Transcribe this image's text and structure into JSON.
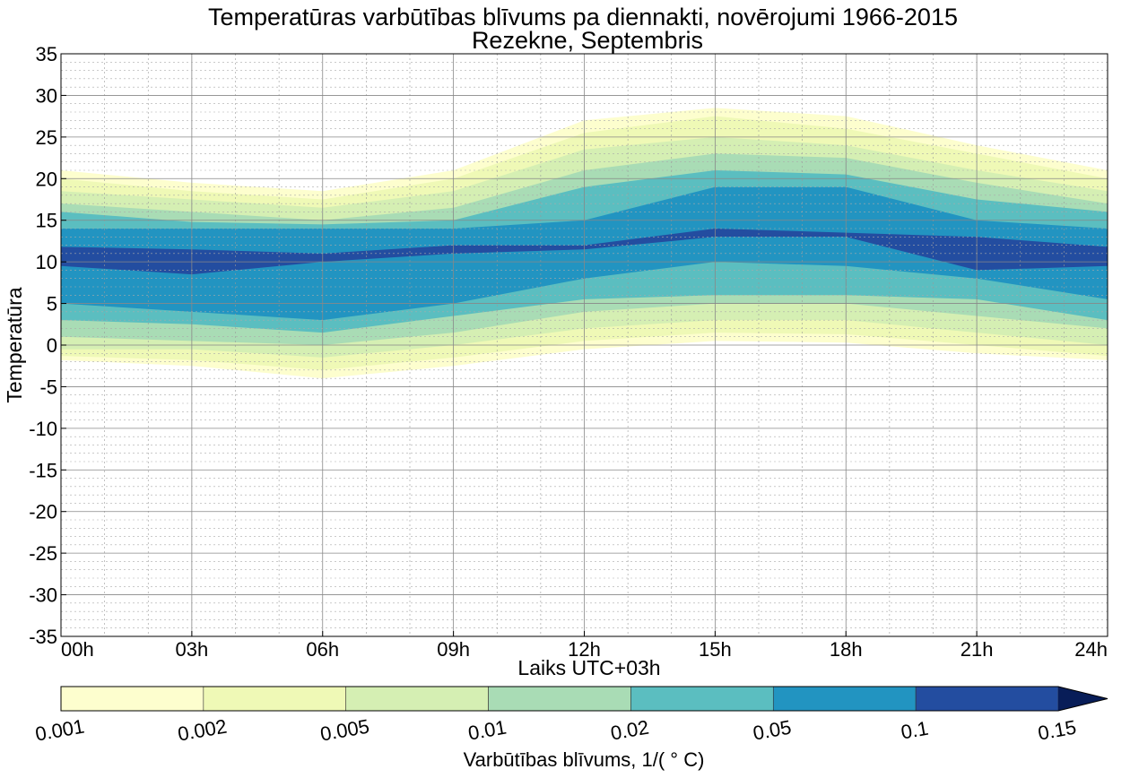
{
  "chart_data": {
    "type": "contourf",
    "title": "Temperatūras varbūtības blīvums pa diennakti, novērojumi 1966-2015",
    "subtitle": "Rezekne, Septembris",
    "xlabel": "Laiks UTC+03h",
    "ylabel": "Temperatūra",
    "xlim": [
      0,
      24
    ],
    "ylim": [
      -35,
      35
    ],
    "x_ticks": [
      0,
      3,
      6,
      9,
      12,
      15,
      18,
      21,
      24
    ],
    "x_tick_labels": [
      "00h",
      "03h",
      "06h",
      "09h",
      "12h",
      "15h",
      "18h",
      "21h",
      "24h"
    ],
    "y_ticks": [
      35,
      30,
      25,
      20,
      15,
      10,
      5,
      0,
      -5,
      -10,
      -15,
      -20,
      -25,
      -30,
      -35
    ],
    "y_tick_labels": [
      "35",
      "30",
      "25",
      "20",
      "15",
      "10",
      "5",
      "0",
      "-5",
      "-10",
      "-15",
      "-20",
      "-25",
      "-30",
      "-35"
    ],
    "grid": true,
    "colorbar": {
      "label": "Varbūtības blīvums, 1/( ° C)",
      "levels": [
        0.001,
        0.002,
        0.005,
        0.01,
        0.02,
        0.05,
        0.1,
        0.15
      ],
      "level_labels": [
        "0.001",
        "0.002",
        "0.005",
        "0.01",
        "0.02",
        "0.05",
        "0.1",
        "0.15"
      ],
      "colors": [
        "#fdfece",
        "#eff9b6",
        "#d5efb3",
        "#a9dcb5",
        "#5bbec0",
        "#2294c1",
        "#234da0",
        "#081d58"
      ],
      "extend": "max"
    },
    "x": [
      0,
      3,
      6,
      9,
      12,
      15,
      18,
      21,
      24
    ],
    "bands": [
      {
        "level": 0.001,
        "lower": [
          -1.8,
          -2.5,
          -4,
          -2.5,
          -0.5,
          0.5,
          0.3,
          -1,
          -1.8
        ],
        "upper": [
          21,
          19.5,
          18.5,
          21,
          27,
          28.5,
          27.5,
          24,
          21
        ]
      },
      {
        "level": 0.002,
        "lower": [
          -1.3,
          -1.8,
          -3,
          -1.5,
          0.5,
          1.5,
          1.3,
          0,
          -1.3
        ],
        "upper": [
          20,
          18.5,
          17.5,
          20,
          25.5,
          27.5,
          26,
          23,
          20
        ]
      },
      {
        "level": 0.005,
        "lower": [
          -0.5,
          -0.5,
          -1.5,
          0,
          2,
          3,
          3,
          1.5,
          0
        ],
        "upper": [
          18.5,
          17.5,
          16.5,
          18.5,
          23.5,
          25,
          24,
          21,
          18.5
        ]
      },
      {
        "level": 0.01,
        "lower": [
          1,
          0.5,
          0,
          1.5,
          4,
          5,
          5,
          3.5,
          2
        ],
        "upper": [
          17,
          16,
          15,
          16.5,
          21,
          23,
          22.5,
          19.5,
          17
        ]
      },
      {
        "level": 0.02,
        "lower": [
          3,
          2.5,
          1.5,
          3.5,
          5.5,
          6,
          6,
          5.5,
          3
        ],
        "upper": [
          16,
          14.8,
          14.5,
          15,
          19,
          21,
          20.5,
          17.5,
          16
        ]
      },
      {
        "level": 0.05,
        "lower": [
          5,
          4,
          3,
          5,
          8,
          10,
          9.5,
          8,
          5.5
        ],
        "upper": [
          14,
          14,
          14,
          14,
          15,
          19,
          19,
          15,
          14
        ]
      },
      {
        "level": 0.1,
        "lower": [
          9.5,
          8.5,
          10,
          11,
          11.5,
          13,
          13,
          9,
          9.5
        ],
        "upper": [
          11.8,
          11.5,
          11,
          12,
          12,
          14,
          13.5,
          13,
          11.8
        ]
      }
    ]
  }
}
